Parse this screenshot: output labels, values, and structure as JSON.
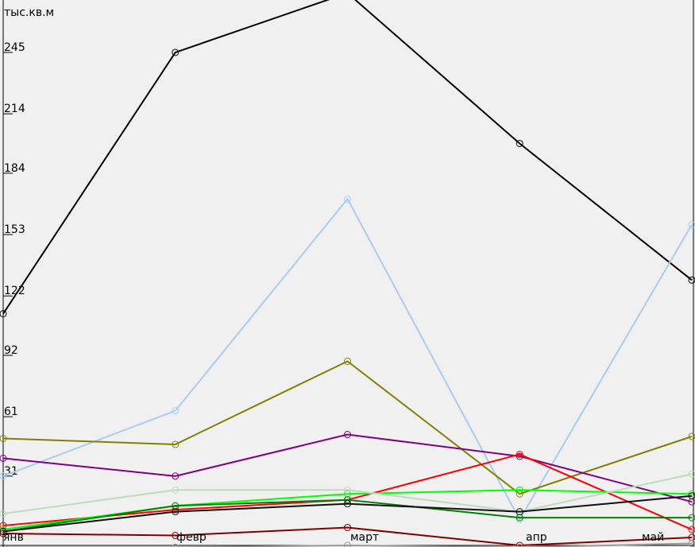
{
  "chart_data": {
    "type": "line",
    "ylabel": "тыс.кв.м",
    "categories": [
      "янв",
      "февр",
      "март",
      "апр",
      "май"
    ],
    "yticks": [
      31,
      61,
      92,
      122,
      153,
      184,
      214,
      245
    ],
    "ylim": [
      -5,
      276
    ],
    "grid": false,
    "series": [
      {
        "color": "#000000",
        "values": [
          113,
          245,
          275,
          199,
          130
        ]
      },
      {
        "color": "#aaccee",
        "values": [
          31,
          64,
          171,
          9,
          158
        ]
      },
      {
        "color": "#808000",
        "values": [
          50,
          47,
          89,
          22,
          51
        ]
      },
      {
        "color": "#800080",
        "values": [
          40,
          31,
          52,
          41,
          18
        ]
      },
      {
        "color": "#ff0000",
        "values": [
          6,
          14,
          19,
          42,
          4
        ]
      },
      {
        "color": "#00ff00",
        "values": [
          4,
          16,
          22,
          24,
          22
        ]
      },
      {
        "color": "#008000",
        "values": [
          3,
          16,
          19,
          10,
          10
        ]
      },
      {
        "color": "#bbddbb",
        "values": [
          12,
          24,
          24,
          13,
          32
        ]
      },
      {
        "color": "#111111",
        "values": [
          3,
          13,
          17,
          13,
          21
        ]
      },
      {
        "color": "#800000",
        "values": [
          2,
          1,
          5,
          -4,
          0
        ]
      },
      {
        "color": "#999999",
        "values": [
          -5,
          -5,
          -4,
          -5,
          -3
        ]
      }
    ]
  }
}
